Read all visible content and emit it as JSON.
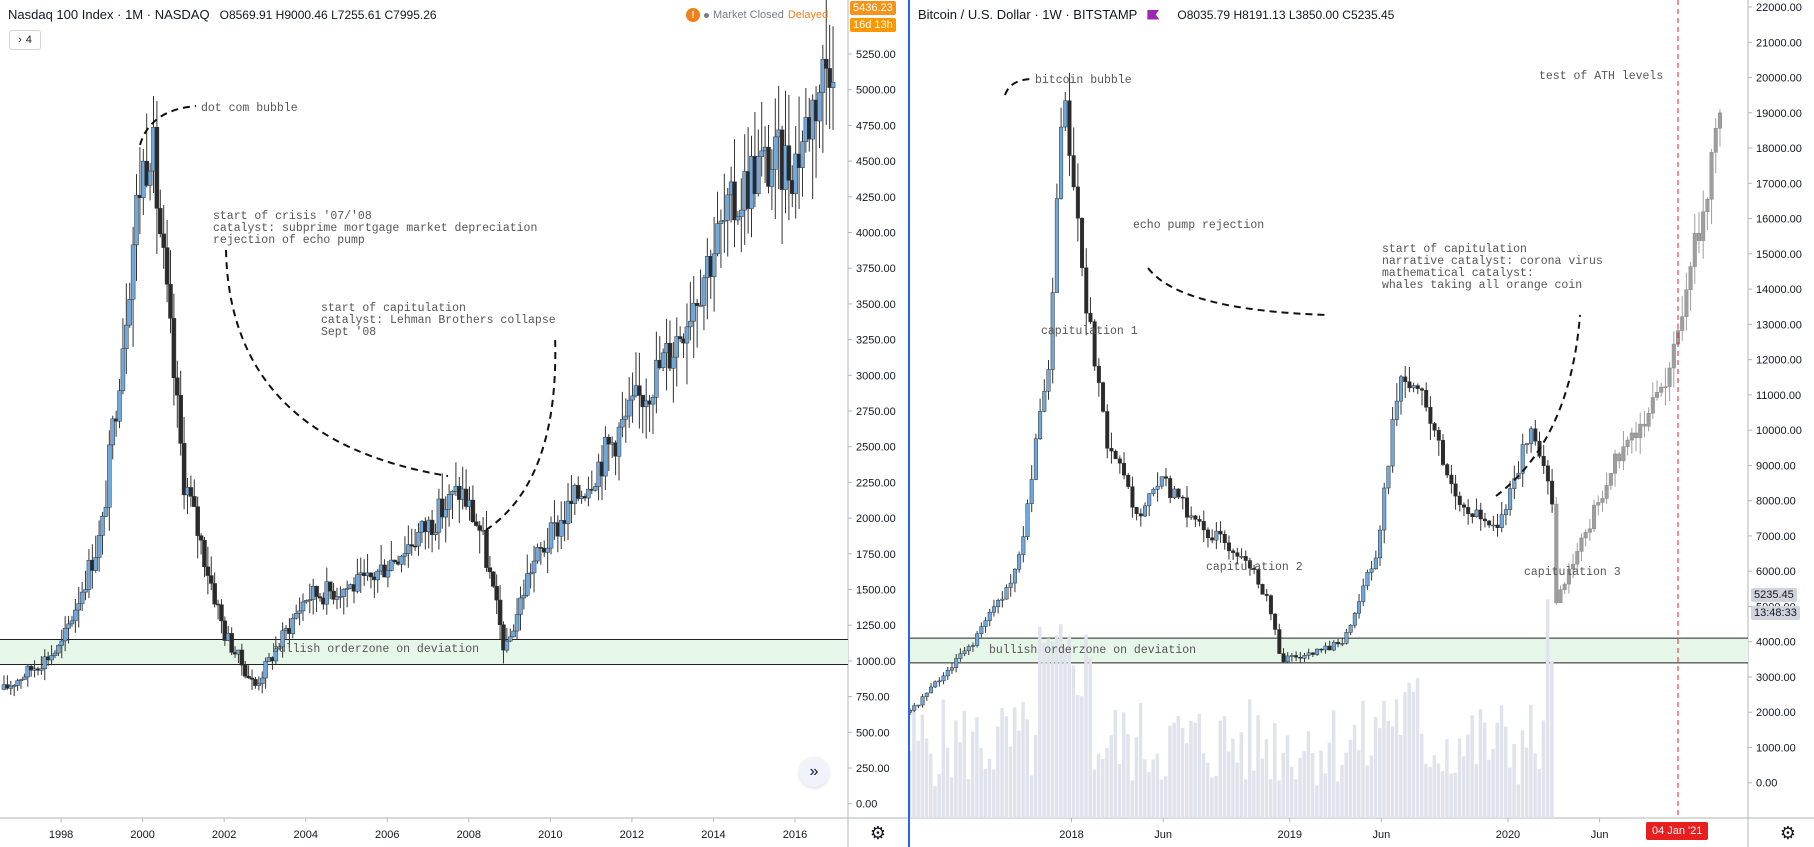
{
  "left": {
    "header": {
      "symbol": "Nasdaq 100 Index · 1M · NASDAQ",
      "o_label": "O",
      "o": "8569.91",
      "h_label": "H",
      "h": "9000.46",
      "l_label": "L",
      "l": "7255.61",
      "c_label": "C",
      "c": "7995.26"
    },
    "indicator_count": "4",
    "market_status": "Market Closed",
    "delayed": "Delayed",
    "warning_glyph": "!",
    "price_tag": "5436.23",
    "countdown": "16d 13h",
    "scroll_glyph": "»",
    "gear_glyph": "⚙"
  },
  "right": {
    "header": {
      "symbol": "Bitcoin / U.S. Dollar · 1W · BITSTAMP",
      "o_label": "O",
      "o": "8035.79",
      "h_label": "H",
      "h": "8191.13",
      "l_label": "L",
      "l": "3850.00",
      "c_label": "C",
      "c": "5235.45"
    },
    "price_tag": "5235.45",
    "countdown": "13:48:33",
    "date_tag": "04 Jan '21",
    "gear_glyph": "⚙"
  },
  "chart_data": [
    {
      "type": "candlestick",
      "title": "Nasdaq 100 Index · 1M · NASDAQ",
      "y_ticks": [
        0,
        250,
        500,
        750,
        1000,
        1250,
        1500,
        1750,
        2000,
        2250,
        2500,
        2750,
        3000,
        3250,
        3500,
        3750,
        4000,
        4250,
        4500,
        4750,
        5000,
        5250
      ],
      "y_tick_labels": [
        "0.00",
        "250.00",
        "500.00",
        "750.00",
        "1000.00",
        "1250.00",
        "1500.00",
        "1750.00",
        "2000.00",
        "2250.00",
        "2500.00",
        "2750.00",
        "3000.00",
        "3250.00",
        "3500.00",
        "3750.00",
        "4000.00",
        "4250.00",
        "4500.00",
        "4750.00",
        "5000.00",
        "5250.00"
      ],
      "ylim": [
        -100,
        5600
      ],
      "x_ticks": [
        1998,
        2000,
        2002,
        2004,
        2006,
        2008,
        2010,
        2012,
        2014,
        2016
      ],
      "x_tick_labels": [
        "1998",
        "2000",
        "2002",
        "2004",
        "2006",
        "2008",
        "2010",
        "2012",
        "2014",
        "2016"
      ],
      "xlim": [
        1996.6,
        2017.3
      ],
      "key_points": [
        [
          1996.6,
          800
        ],
        [
          1998.0,
          1100
        ],
        [
          1999.0,
          1900
        ],
        [
          1999.9,
          4300
        ],
        [
          2000.2,
          4700
        ],
        [
          2001.0,
          2300
        ],
        [
          2002.0,
          1200
        ],
        [
          2002.75,
          820
        ],
        [
          2004.0,
          1450
        ],
        [
          2005.5,
          1550
        ],
        [
          2007.0,
          1950
        ],
        [
          2007.8,
          2200
        ],
        [
          2008.3,
          1900
        ],
        [
          2008.9,
          1050
        ],
        [
          2009.5,
          1650
        ],
        [
          2011.0,
          2300
        ],
        [
          2013.0,
          3200
        ],
        [
          2014.0,
          3900
        ],
        [
          2015.0,
          4450
        ],
        [
          2016.0,
          4500
        ],
        [
          2017.0,
          5400
        ]
      ],
      "zone": {
        "label": "bullish orderzone on deviation",
        "from": 975,
        "to": 1150
      },
      "annotations": [
        {
          "text": [
            "dot com bubble"
          ]
        },
        {
          "text": [
            "start of crisis '07/'08",
            "catalyst: subprime mortgage market depreciation",
            "rejection of echo pump"
          ]
        },
        {
          "text": [
            "start of capitulation",
            "catalyst: Lehman Brothers collapse",
            "Sept '08"
          ]
        }
      ]
    },
    {
      "type": "candlestick",
      "title": "Bitcoin / U.S. Dollar · 1W · BITSTAMP",
      "y_ticks": [
        0,
        1000,
        2000,
        3000,
        4000,
        5000,
        6000,
        7000,
        8000,
        9000,
        10000,
        11000,
        12000,
        13000,
        14000,
        15000,
        16000,
        17000,
        18000,
        19000,
        20000,
        21000,
        22000
      ],
      "y_tick_labels": [
        "0.00",
        "1000.00",
        "2000.00",
        "3000.00",
        "4000.00",
        "5000.00",
        "6000.00",
        "7000.00",
        "8000.00",
        "9000.00",
        "10000.00",
        "11000.00",
        "12000.00",
        "13000.00",
        "14000.00",
        "15000.00",
        "16000.00",
        "17000.00",
        "18000.00",
        "19000.00",
        "20000.00",
        "21000.00",
        "22000.00"
      ],
      "ylim": [
        -1000,
        22000
      ],
      "x_ticks": [
        2018.0,
        2018.42,
        2019.0,
        2019.42,
        2020.0,
        2020.42
      ],
      "x_tick_labels": [
        "2018",
        "Jun",
        "2019",
        "Jun",
        "2020",
        "Jun"
      ],
      "xlim": [
        2017.26,
        2021.1
      ],
      "key_points": [
        [
          2017.26,
          2000
        ],
        [
          2017.55,
          4000
        ],
        [
          2017.75,
          6000
        ],
        [
          2017.9,
          12000
        ],
        [
          2017.96,
          19500
        ],
        [
          2018.05,
          14500
        ],
        [
          2018.15,
          10000
        ],
        [
          2018.3,
          7500
        ],
        [
          2018.42,
          8500
        ],
        [
          2018.6,
          7200
        ],
        [
          2018.8,
          6400
        ],
        [
          2018.9,
          5200
        ],
        [
          2018.96,
          3500
        ],
        [
          2019.1,
          3600
        ],
        [
          2019.25,
          4100
        ],
        [
          2019.4,
          6500
        ],
        [
          2019.5,
          11500
        ],
        [
          2019.6,
          11000
        ],
        [
          2019.75,
          8200
        ],
        [
          2019.95,
          7200
        ],
        [
          2020.1,
          10000
        ],
        [
          2020.2,
          8500
        ],
        [
          2020.21,
          5000
        ],
        [
          2020.35,
          7000
        ],
        [
          2020.5,
          9300
        ],
        [
          2020.7,
          11000
        ],
        [
          2020.85,
          15000
        ],
        [
          2020.98,
          19000
        ]
      ],
      "projected_from": 2020.21,
      "zone": {
        "label": "bullish orderzone on deviation",
        "from": 3400,
        "to": 4100
      },
      "annotations": [
        {
          "text": [
            "bitcoin bubble"
          ]
        },
        {
          "text": [
            "capitulation 1"
          ]
        },
        {
          "text": [
            "echo pump rejection"
          ]
        },
        {
          "text": [
            "capitulation 2"
          ]
        },
        {
          "text": [
            "start of capitulation",
            "narrative catalyst: corona virus",
            "mathematical catalyst:",
            "whales taking all orange coin"
          ]
        },
        {
          "text": [
            "capitulation 3"
          ]
        },
        {
          "text": [
            "test of ATH levels"
          ]
        }
      ],
      "volume": true
    }
  ]
}
